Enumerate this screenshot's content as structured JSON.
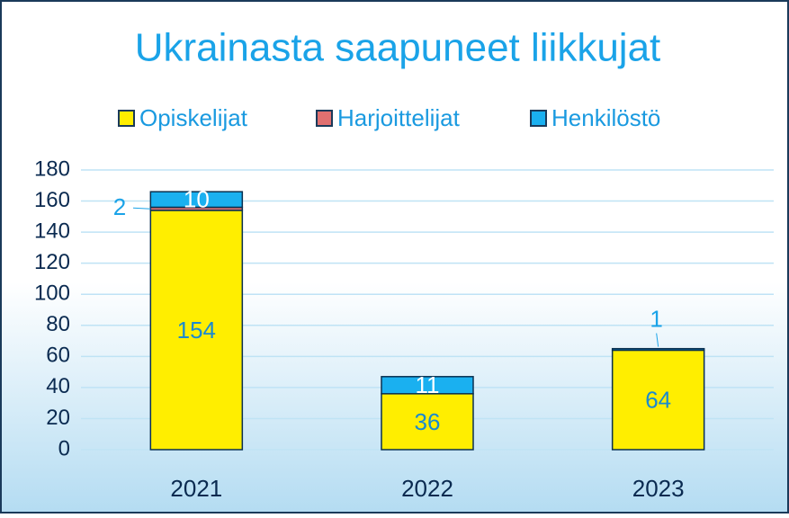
{
  "chart_data": {
    "type": "stacked_bar",
    "title": "Ukrainasta saapuneet liikkujat",
    "categories": [
      "2021",
      "2022",
      "2023"
    ],
    "series": [
      {
        "name": "Opiskelijat",
        "color": "#ffee00",
        "values": [
          154,
          36,
          64
        ]
      },
      {
        "name": "Harjoittelijat",
        "color": "#e07070",
        "values": [
          2,
          null,
          null
        ]
      },
      {
        "name": "Henkilöstö",
        "color": "#1ab0f0",
        "values": [
          10,
          11,
          1
        ]
      }
    ],
    "ylim": [
      0,
      180
    ],
    "yticks": [
      0,
      20,
      40,
      60,
      80,
      100,
      120,
      140,
      160,
      180
    ],
    "grid": true,
    "legend": "top"
  }
}
